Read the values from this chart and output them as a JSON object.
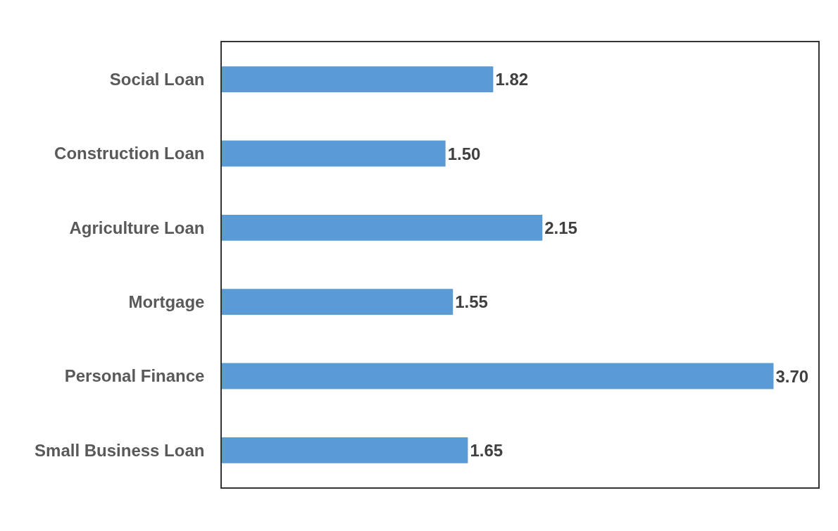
{
  "chart_data": {
    "type": "bar",
    "orientation": "horizontal",
    "categories": [
      "Social Loan",
      "Construction Loan",
      "Agriculture Loan",
      "Mortgage",
      "Personal Finance",
      "Small Business Loan"
    ],
    "values": [
      1.82,
      1.5,
      2.15,
      1.55,
      3.7,
      1.65
    ],
    "value_labels": [
      "1.82",
      "1.50",
      "2.15",
      "1.55",
      "3.70",
      "1.65"
    ],
    "color": "#5b9bd5",
    "xlim": [
      0,
      4
    ],
    "tick_labels": "y"
  }
}
